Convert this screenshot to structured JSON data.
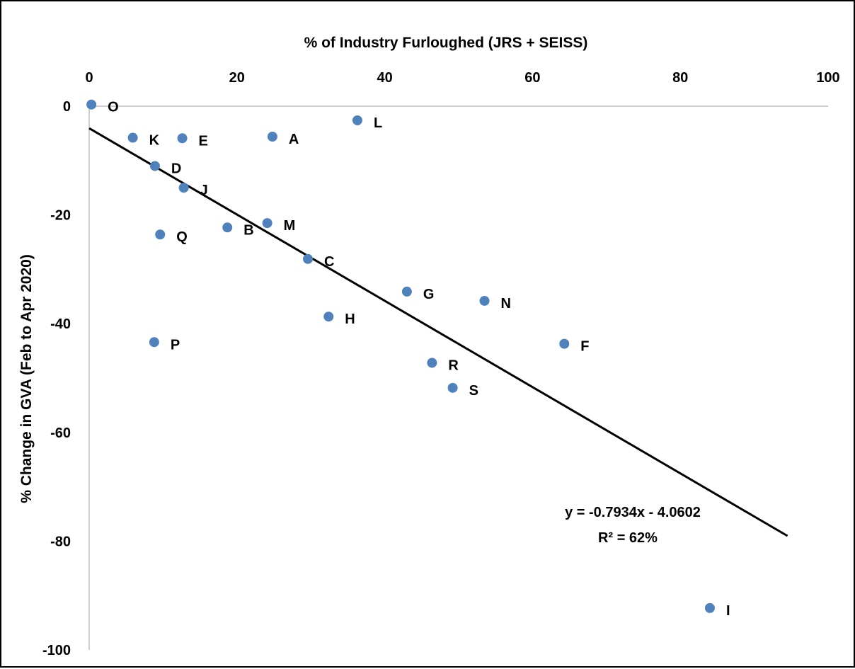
{
  "chart_data": {
    "type": "scatter",
    "xlabel": "% of Industry Furloughed (JRS + SEISS)",
    "ylabel": "% Change in GVA (Feb to Apr 2020)",
    "xlim": [
      0,
      100
    ],
    "ylim": [
      -100,
      0
    ],
    "x_axis_position": "top",
    "x_ticks": [
      0,
      20,
      40,
      60,
      80,
      100
    ],
    "y_ticks": [
      0,
      -20,
      -40,
      -60,
      -80,
      -100
    ],
    "grid": false,
    "legend": "none",
    "point_color": "#4f81bd",
    "points": [
      {
        "label": "O",
        "x": 0.3,
        "y": 0.3
      },
      {
        "label": "K",
        "x": 5.9,
        "y": -5.8
      },
      {
        "label": "E",
        "x": 12.6,
        "y": -5.9
      },
      {
        "label": "A",
        "x": 24.8,
        "y": -5.6
      },
      {
        "label": "L",
        "x": 36.3,
        "y": -2.6
      },
      {
        "label": "D",
        "x": 8.9,
        "y": -11.0
      },
      {
        "label": "J",
        "x": 12.8,
        "y": -15.0
      },
      {
        "label": "M",
        "x": 24.1,
        "y": -21.5
      },
      {
        "label": "B",
        "x": 18.7,
        "y": -22.3
      },
      {
        "label": "Q",
        "x": 9.6,
        "y": -23.6
      },
      {
        "label": "C",
        "x": 29.6,
        "y": -28.1
      },
      {
        "label": "G",
        "x": 43.0,
        "y": -34.1
      },
      {
        "label": "N",
        "x": 53.5,
        "y": -35.8
      },
      {
        "label": "H",
        "x": 32.4,
        "y": -38.7
      },
      {
        "label": "P",
        "x": 8.8,
        "y": -43.4
      },
      {
        "label": "F",
        "x": 64.3,
        "y": -43.7
      },
      {
        "label": "R",
        "x": 46.4,
        "y": -47.2
      },
      {
        "label": "S",
        "x": 49.2,
        "y": -51.8
      },
      {
        "label": "I",
        "x": 84.0,
        "y": -92.3
      }
    ],
    "trendline": {
      "slope": -0.7934,
      "intercept": -4.0602,
      "x_range": [
        0,
        94.5
      ],
      "color": "#000000"
    },
    "annotations": {
      "equation": "y = -0.7934x - 4.0602",
      "r_squared": "R² = 62%"
    }
  }
}
